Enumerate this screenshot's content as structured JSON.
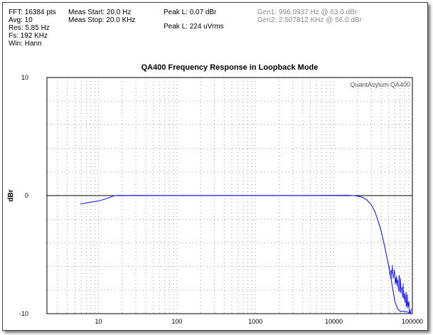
{
  "header": {
    "fft": "FFT: 16384 pts",
    "avg": "Avg: 10",
    "res": "Res: 5.85 Hz",
    "fs": "Fs: 192 KHz",
    "win": "Win: Hann",
    "meas_start": "Meas Start: 20.0 Hz",
    "meas_stop": "Meas Stop: 20.0 KHz",
    "peak_l_dbr": "Peak L: 0.07 dBr",
    "peak_l_vrms": "Peak L: 224 uVrms",
    "gen1": "Gen1: 996.0937 Hz @ 63.0  dBr",
    "gen2": "Gen2: 2.507812 KHz @ 56.0  dBr"
  },
  "chart_data": {
    "type": "line",
    "title": "QA400 Frequency Response in Loopback Mode",
    "watermark": "QuantAsylum QA400",
    "xlabel": "",
    "ylabel": "dBr",
    "x_scale": "log",
    "xlim": [
      2.2,
      100000
    ],
    "ylim": [
      -10,
      10
    ],
    "x_ticks": [
      10,
      100,
      1000,
      10000,
      100000
    ],
    "x_tick_labels": [
      "10",
      "100",
      "1000",
      "10000",
      "100000"
    ],
    "y_ticks": [
      10,
      0,
      -10
    ],
    "y_tick_labels": [
      "10",
      "0",
      "-10"
    ],
    "grid": true,
    "reference_line_y": 0,
    "series": [
      {
        "color": "#1a1aff",
        "x": [
          5.85,
          8,
          10,
          12,
          14,
          16,
          18,
          20,
          25,
          30,
          40,
          60,
          100,
          200,
          500,
          1000,
          2000,
          5000,
          10000,
          15000,
          18000,
          20000,
          22000,
          24000,
          26000,
          28000,
          30000,
          33000,
          36000,
          40000,
          45000,
          50000,
          55000,
          60000,
          65000,
          70000,
          80000,
          90000,
          96000
        ],
        "y": [
          -0.72,
          -0.55,
          -0.45,
          -0.3,
          -0.15,
          0.0,
          0.02,
          0.02,
          0.01,
          0.02,
          0.01,
          0.01,
          0.01,
          0.01,
          0.01,
          0.01,
          0.01,
          0.01,
          0.02,
          0.03,
          0.0,
          -0.05,
          -0.1,
          -0.2,
          -0.35,
          -0.55,
          -0.8,
          -1.3,
          -2.0,
          -3.0,
          -4.5,
          -6.0,
          -7.5,
          -9.0,
          -9.6,
          -9.8,
          -9.8,
          -9.9,
          -9.9
        ]
      }
    ]
  }
}
